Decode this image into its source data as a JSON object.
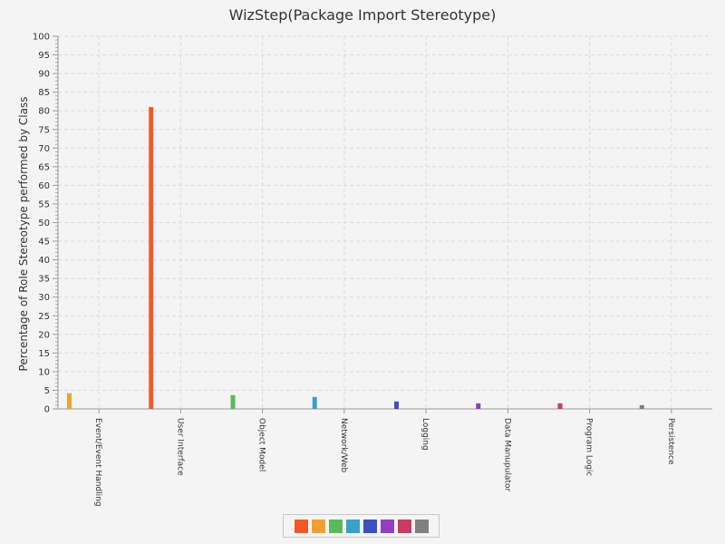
{
  "chart_data": {
    "type": "bar",
    "title": "WizStep(Package Import Stereotype)",
    "xlabel": "",
    "ylabel": "Percentage of Role Stereotype performed by Class",
    "ylim": [
      0,
      100
    ],
    "yticks": [
      0,
      5,
      10,
      15,
      20,
      25,
      30,
      35,
      40,
      45,
      50,
      55,
      60,
      65,
      70,
      75,
      80,
      85,
      90,
      95,
      100
    ],
    "categories": [
      "Event/Event Handling",
      "User Interface",
      "Object Model",
      "Network/Web",
      "Logging",
      "Data Manupulator",
      "Program Logic",
      "Persistence"
    ],
    "values": [
      4.2,
      81.0,
      3.7,
      3.2,
      2.0,
      1.5,
      1.5,
      1.0
    ],
    "colors": [
      "#f0a030",
      "#f05a28",
      "#5cb85c",
      "#3aa0c8",
      "#3c50c0",
      "#9040c0",
      "#c83c64",
      "#808080"
    ],
    "grid": true,
    "legend": {
      "position": "bottom",
      "colors": [
        "#f05a28",
        "#f0a030",
        "#5cb85c",
        "#3aa0c8",
        "#3c50c0",
        "#9040c0",
        "#c83c64",
        "#808080"
      ]
    }
  }
}
